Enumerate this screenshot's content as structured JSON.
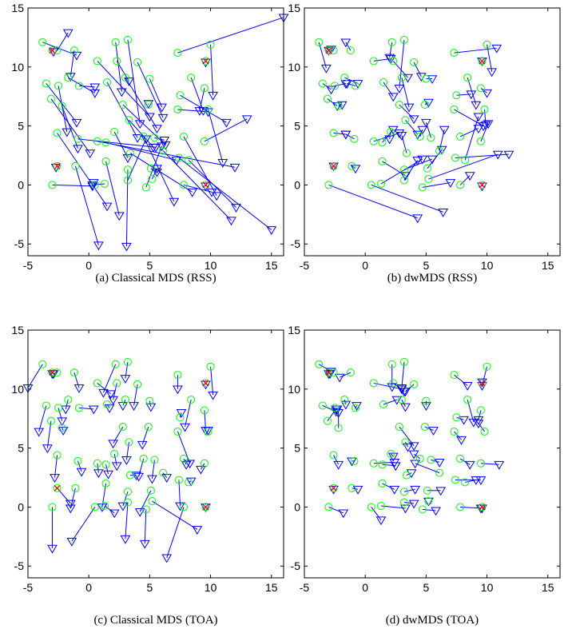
{
  "figure": {
    "legend_markers": {
      "true_position": "green-circle",
      "estimated_position": "blue-triangle",
      "anchor": "red-cross"
    },
    "colors": {
      "true": "#00ff00",
      "estimate": "#0000ff",
      "anchor": "#ff0000",
      "link": "#0000ff"
    }
  },
  "truth": [
    [
      -3.8,
      12.1
    ],
    [
      -3.0,
      11.4
    ],
    [
      -1.2,
      11.4
    ],
    [
      2.2,
      12.1
    ],
    [
      3.2,
      12.3
    ],
    [
      7.3,
      11.2
    ],
    [
      9.6,
      10.5
    ],
    [
      10.0,
      11.9
    ],
    [
      -2.6,
      11.4
    ],
    [
      0.7,
      10.5
    ],
    [
      2.3,
      10.5
    ],
    [
      4.0,
      10.4
    ],
    [
      -3.5,
      8.6
    ],
    [
      -2.5,
      8.4
    ],
    [
      -1.7,
      9.1
    ],
    [
      -0.8,
      8.4
    ],
    [
      1.5,
      8.7
    ],
    [
      3.0,
      9.1
    ],
    [
      5.0,
      9.0
    ],
    [
      7.5,
      7.6
    ],
    [
      8.4,
      9.1
    ],
    [
      9.5,
      8.2
    ],
    [
      -3.1,
      7.3
    ],
    [
      -2.2,
      6.7
    ],
    [
      2.8,
      6.8
    ],
    [
      4.9,
      6.8
    ],
    [
      7.3,
      6.4
    ],
    [
      9.8,
      6.4
    ],
    [
      -2.6,
      4.4
    ],
    [
      0.7,
      3.7
    ],
    [
      2.1,
      4.5
    ],
    [
      3.3,
      5.5
    ],
    [
      4.5,
      4.1
    ],
    [
      5.4,
      4.0
    ],
    [
      7.8,
      4.1
    ],
    [
      9.5,
      3.7
    ],
    [
      -0.9,
      3.9
    ],
    [
      1.4,
      3.6
    ],
    [
      3.4,
      2.7
    ],
    [
      6.1,
      2.9
    ],
    [
      8.2,
      2.1
    ],
    [
      -2.6,
      1.6
    ],
    [
      -1.1,
      1.6
    ],
    [
      1.4,
      2.0
    ],
    [
      3.2,
      1.3
    ],
    [
      5.1,
      1.4
    ],
    [
      7.4,
      2.3
    ],
    [
      9.6,
      0.0
    ],
    [
      -3.0,
      0.0
    ],
    [
      0.5,
      0.0
    ],
    [
      1.3,
      0.1
    ],
    [
      3.2,
      0.4
    ],
    [
      4.7,
      -0.2
    ],
    [
      7.8,
      0.0
    ],
    [
      5.2,
      0.5
    ]
  ],
  "anchors": [
    [
      -3.0,
      11.4
    ],
    [
      9.6,
      10.5
    ],
    [
      -2.6,
      1.6
    ],
    [
      9.6,
      0.0
    ]
  ],
  "panels": [
    {
      "caption": "(a)  Classical MDS (RSS)",
      "xlim": [
        -5,
        16
      ],
      "ylim": [
        -6,
        15
      ],
      "xticks": [
        -5,
        0,
        5,
        10,
        15
      ],
      "yticks": [
        -5,
        0,
        5,
        10,
        15
      ],
      "estimates": [
        [
          -1.0,
          11.0
        ],
        [
          -2.9,
          11.3
        ],
        [
          -1.5,
          9.2
        ],
        [
          2.7,
          7.9
        ],
        [
          4.2,
          5.2
        ],
        [
          16.0,
          14.2
        ],
        [
          9.6,
          10.4
        ],
        [
          10.2,
          7.6
        ],
        [
          -1.7,
          12.9
        ],
        [
          5.0,
          5.8
        ],
        [
          3.3,
          8.8
        ],
        [
          6.1,
          5.7
        ],
        [
          -1.0,
          5.3
        ],
        [
          -1.8,
          4.5
        ],
        [
          0.5,
          7.8
        ],
        [
          0.5,
          8.3
        ],
        [
          4.0,
          4.0
        ],
        [
          5.6,
          4.8
        ],
        [
          6.0,
          6.6
        ],
        [
          11.3,
          5.3
        ],
        [
          9.4,
          6.3
        ],
        [
          9.1,
          6.3
        ],
        [
          0.1,
          2.7
        ],
        [
          -0.9,
          3.1
        ],
        [
          6.3,
          3.4
        ],
        [
          4.9,
          6.9
        ],
        [
          9.8,
          6.2
        ],
        [
          11.0,
          1.9
        ],
        [
          1.5,
          -1.8
        ],
        [
          12.0,
          1.5
        ],
        [
          3.2,
          2.3
        ],
        [
          5.3,
          3.2
        ],
        [
          7.0,
          -1.4
        ],
        [
          6.2,
          3.8
        ],
        [
          10.5,
          -0.9
        ],
        [
          13.0,
          5.6
        ],
        [
          5.5,
          3.2
        ],
        [
          7.2,
          2.1
        ],
        [
          8.5,
          -0.6
        ],
        [
          11.7,
          -3.0
        ],
        [
          12.1,
          -1.9
        ],
        [
          -2.7,
          1.5
        ],
        [
          0.8,
          -5.1
        ],
        [
          2.5,
          -2.6
        ],
        [
          3.1,
          -5.2
        ],
        [
          5.6,
          1.1
        ],
        [
          15.0,
          -3.8
        ],
        [
          9.6,
          -0.1
        ],
        [
          0.3,
          -0.1
        ],
        [
          0.4,
          0.2
        ],
        [
          0.3,
          0.0
        ],
        [
          4.7,
          3.9
        ],
        [
          6.0,
          3.3
        ],
        [
          10.1,
          -0.6
        ],
        [
          5.6,
          1.4
        ]
      ]
    },
    {
      "caption": "(b)  dwMDS (RSS)",
      "xlim": [
        -5,
        16
      ],
      "ylim": [
        -6,
        15
      ],
      "xticks": [
        -5,
        0,
        5,
        10,
        15
      ],
      "yticks": [
        -5,
        0,
        5,
        10,
        15
      ],
      "estimates": [
        [
          -3.2,
          9.9
        ],
        [
          -3.0,
          11.4
        ],
        [
          -1.6,
          12.1
        ],
        [
          2.0,
          10.8
        ],
        [
          2.8,
          8.2
        ],
        [
          10.8,
          11.6
        ],
        [
          9.6,
          10.5
        ],
        [
          10.4,
          9.6
        ],
        [
          -2.8,
          11.5
        ],
        [
          2.1,
          10.7
        ],
        [
          3.5,
          9.1
        ],
        [
          4.6,
          9.2
        ],
        [
          -2.8,
          8.1
        ],
        [
          -1.6,
          8.6
        ],
        [
          -0.6,
          8.6
        ],
        [
          -1.5,
          8.6
        ],
        [
          2.3,
          7.5
        ],
        [
          3.6,
          6.6
        ],
        [
          5.5,
          9.0
        ],
        [
          8.7,
          7.7
        ],
        [
          9.1,
          6.8
        ],
        [
          10.0,
          7.8
        ],
        [
          -2.3,
          6.7
        ],
        [
          -1.9,
          6.8
        ],
        [
          4.0,
          5.6
        ],
        [
          5.2,
          7.0
        ],
        [
          9.7,
          5.0
        ],
        [
          9.9,
          5.1
        ],
        [
          -1.6,
          4.3
        ],
        [
          2.8,
          4.4
        ],
        [
          2.0,
          3.9
        ],
        [
          4.3,
          4.3
        ],
        [
          4.7,
          4.7
        ],
        [
          5.0,
          5.3
        ],
        [
          9.3,
          4.8
        ],
        [
          10.1,
          5.2
        ],
        [
          -1.6,
          4.3
        ],
        [
          2.3,
          4.7
        ],
        [
          3.0,
          4.2
        ],
        [
          6.5,
          4.7
        ],
        [
          9.3,
          5.8
        ],
        [
          -2.6,
          1.6
        ],
        [
          -0.8,
          1.4
        ],
        [
          3.3,
          0.8
        ],
        [
          5.5,
          2.2
        ],
        [
          6.3,
          3.0
        ],
        [
          11.8,
          2.6
        ],
        [
          9.6,
          -0.1
        ],
        [
          4.3,
          -2.8
        ],
        [
          6.4,
          -2.3
        ],
        [
          4.7,
          2.2
        ],
        [
          4.3,
          2.1
        ],
        [
          7.0,
          0.2
        ],
        [
          8.6,
          0.8
        ],
        [
          10.9,
          2.6
        ]
      ]
    },
    {
      "caption": "(c)  Classical MDS (TOA)",
      "xlim": [
        -5,
        16
      ],
      "ylim": [
        -6,
        15
      ],
      "xticks": [
        -5,
        0,
        5,
        10,
        15
      ],
      "yticks": [
        -5,
        0,
        5,
        10,
        15
      ],
      "estimates": [
        [
          -5.0,
          10.1
        ],
        [
          -3.0,
          11.3
        ],
        [
          -0.8,
          10.1
        ],
        [
          1.2,
          9.7
        ],
        [
          3.0,
          10.9
        ],
        [
          7.3,
          10.0
        ],
        [
          9.6,
          10.4
        ],
        [
          10.2,
          9.5
        ],
        [
          -2.9,
          11.3
        ],
        [
          1.8,
          9.6
        ],
        [
          2.0,
          9.1
        ],
        [
          3.7,
          8.6
        ],
        [
          -4.1,
          6.4
        ],
        [
          -2.2,
          7.3
        ],
        [
          -1.9,
          8.3
        ],
        [
          0.4,
          8.3
        ],
        [
          1.7,
          8.4
        ],
        [
          2.8,
          8.6
        ],
        [
          5.1,
          8.5
        ],
        [
          7.6,
          8.0
        ],
        [
          7.9,
          6.8
        ],
        [
          9.6,
          6.5
        ],
        [
          -3.4,
          5.0
        ],
        [
          -2.1,
          6.5
        ],
        [
          2.0,
          5.4
        ],
        [
          4.4,
          5.3
        ],
        [
          8.3,
          3.7
        ],
        [
          9.8,
          6.5
        ],
        [
          -2.8,
          2.5
        ],
        [
          0.8,
          2.9
        ],
        [
          2.3,
          3.5
        ],
        [
          3.1,
          4.0
        ],
        [
          4.1,
          2.6
        ],
        [
          5.2,
          2.4
        ],
        [
          8.0,
          3.6
        ],
        [
          9.2,
          3.2
        ],
        [
          -0.6,
          3.0
        ],
        [
          1.6,
          2.8
        ],
        [
          3.9,
          2.7
        ],
        [
          6.4,
          2.5
        ],
        [
          8.4,
          2.2
        ],
        [
          -1.5,
          0.3
        ],
        [
          -1.5,
          -0.1
        ],
        [
          1.1,
          0.0
        ],
        [
          2.8,
          0.1
        ],
        [
          4.2,
          -0.4
        ],
        [
          7.5,
          0.1
        ],
        [
          9.6,
          0.0
        ],
        [
          -3.0,
          -3.5
        ],
        [
          -1.4,
          -2.9
        ],
        [
          2.1,
          -0.5
        ],
        [
          3.0,
          -2.7
        ],
        [
          4.6,
          -3.1
        ],
        [
          6.4,
          -4.3
        ],
        [
          8.9,
          -1.9
        ]
      ]
    },
    {
      "caption": "(d)  dwMDS (TOA)",
      "xlim": [
        -5,
        16
      ],
      "ylim": [
        -6,
        15
      ],
      "xticks": [
        -5,
        0,
        5,
        10,
        15
      ],
      "yticks": [
        -5,
        0,
        5,
        10,
        15
      ],
      "estimates": [
        [
          -2.8,
          11.5
        ],
        [
          -3.0,
          11.3
        ],
        [
          -2.1,
          11.0
        ],
        [
          2.2,
          10.2
        ],
        [
          3.0,
          10.1
        ],
        [
          8.4,
          10.3
        ],
        [
          9.6,
          10.6
        ],
        [
          9.6,
          10.3
        ],
        [
          -2.9,
          11.3
        ],
        [
          3.0,
          10.0
        ],
        [
          3.2,
          9.8
        ],
        [
          3.3,
          9.8
        ],
        [
          -2.4,
          8.1
        ],
        [
          -2.3,
          8.3
        ],
        [
          -1.6,
          8.7
        ],
        [
          -0.7,
          8.6
        ],
        [
          2.6,
          9.1
        ],
        [
          3.3,
          8.5
        ],
        [
          5.0,
          8.6
        ],
        [
          8.1,
          7.4
        ],
        [
          8.9,
          7.2
        ],
        [
          9.3,
          7.4
        ],
        [
          -2.4,
          8.3
        ],
        [
          -2.2,
          8.0
        ],
        [
          4.0,
          5.2
        ],
        [
          5.6,
          6.5
        ],
        [
          7.9,
          5.7
        ],
        [
          9.3,
          7.1
        ],
        [
          -2.2,
          3.6
        ],
        [
          2.4,
          3.8
        ],
        [
          2.3,
          4.3
        ],
        [
          3.5,
          5.1
        ],
        [
          4.0,
          4.5
        ],
        [
          6.1,
          3.8
        ],
        [
          8.6,
          3.6
        ],
        [
          11.0,
          3.6
        ],
        [
          -1.1,
          3.9
        ],
        [
          2.5,
          3.5
        ],
        [
          3.8,
          2.9
        ],
        [
          4.1,
          3.7
        ],
        [
          9.1,
          2.3
        ],
        [
          -2.6,
          1.5
        ],
        [
          -0.6,
          1.5
        ],
        [
          2.4,
          1.5
        ],
        [
          4.1,
          1.5
        ],
        [
          6.2,
          1.4
        ],
        [
          9.5,
          2.3
        ],
        [
          9.6,
          -0.1
        ],
        [
          -1.8,
          -0.5
        ],
        [
          1.3,
          -1.1
        ],
        [
          3.3,
          -0.1
        ],
        [
          4.0,
          0.3
        ],
        [
          5.8,
          -0.3
        ],
        [
          9.5,
          -0.1
        ],
        [
          5.2,
          0.5
        ]
      ]
    }
  ]
}
